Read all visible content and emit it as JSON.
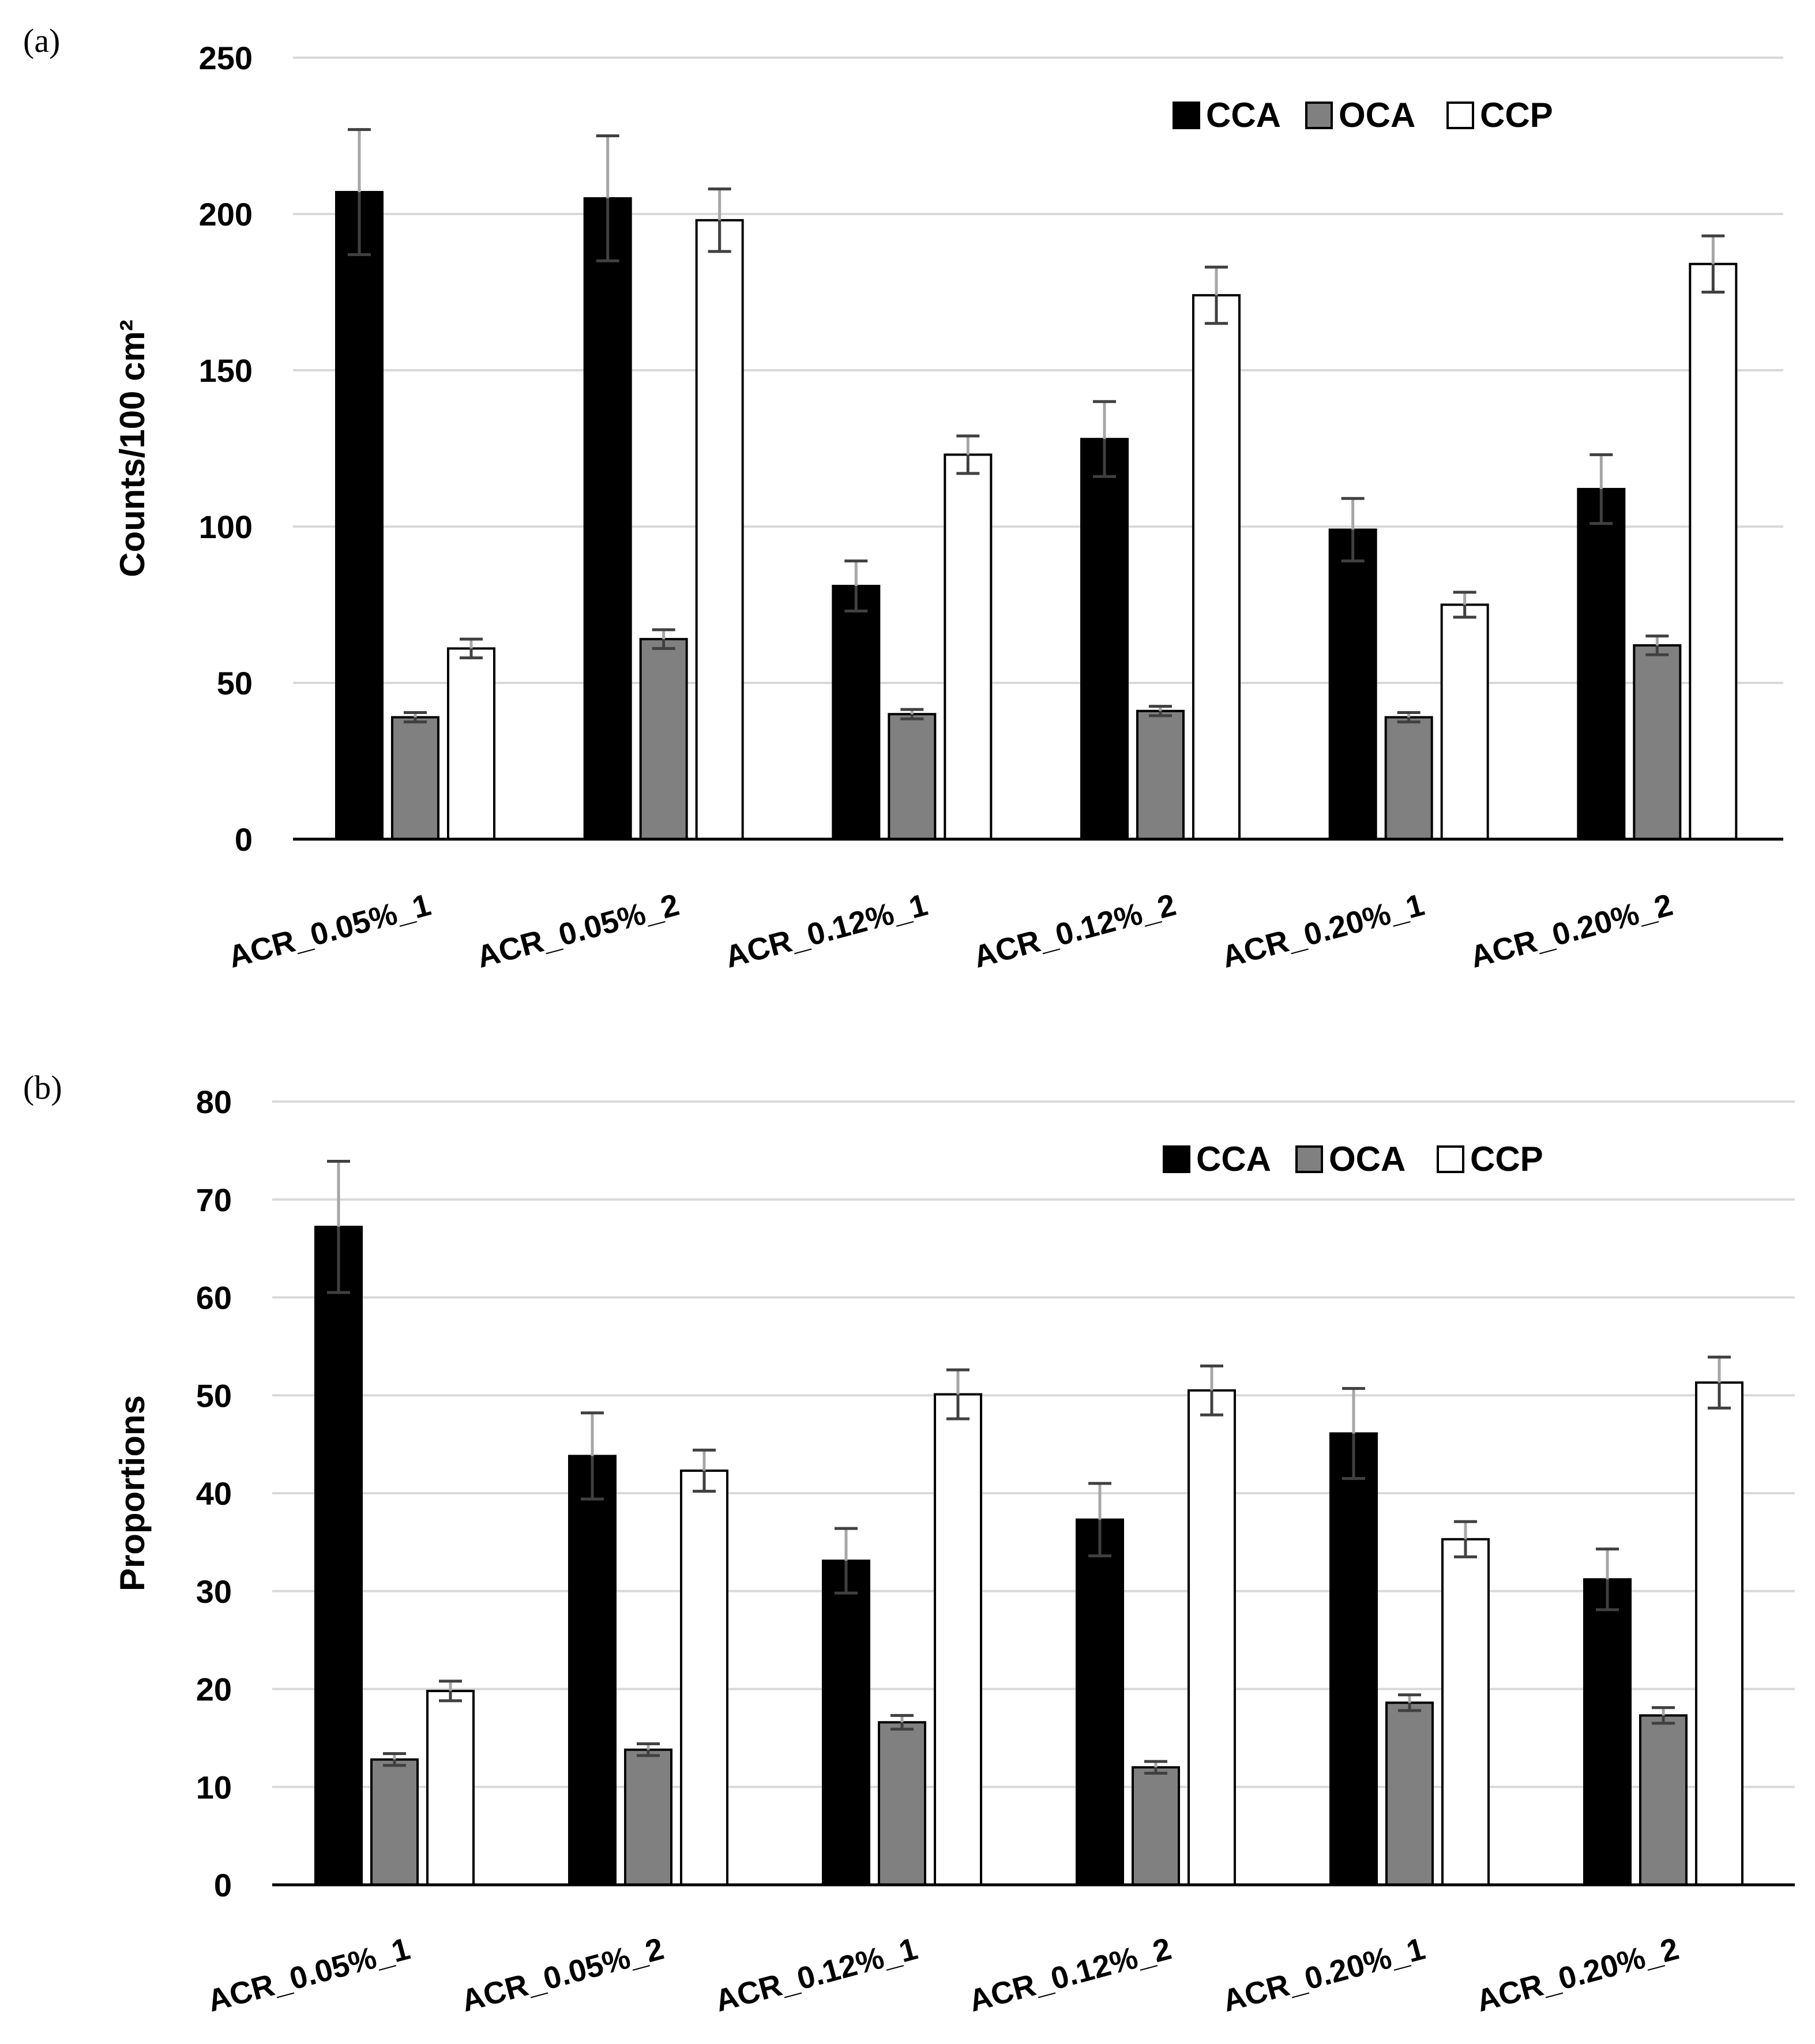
{
  "colors": {
    "CCA": "#000000",
    "OCA": "#808080",
    "CCP": "#ffffff",
    "grid": "#d9d9d9",
    "axis": "#000000",
    "err_light": "#a6a6a6",
    "err_dark": "#404040"
  },
  "chart_data": [
    {
      "panel_label": "(a)",
      "type": "bar",
      "ylabel": "Counts/100 cm²",
      "ylim": [
        0,
        250
      ],
      "yticks": [
        "0",
        "50",
        "100",
        "150",
        "200",
        "250"
      ],
      "legend": [
        "CCA",
        "OCA",
        "CCP"
      ],
      "legend_position": "top-right",
      "categories": [
        "ACR_0.05%_1",
        "ACR_0.05%_2",
        "ACR_0.12%_1",
        "ACR_0.12%_2",
        "ACR_0.20%_1",
        "ACR_0.20%_2"
      ],
      "series": [
        {
          "name": "CCA",
          "values": [
            207,
            205,
            81,
            128,
            99,
            112
          ],
          "errors": [
            20,
            20,
            8,
            12,
            10,
            11
          ]
        },
        {
          "name": "OCA",
          "values": [
            39,
            64,
            40,
            41,
            39,
            62
          ],
          "errors": [
            1.5,
            3,
            1.5,
            1.5,
            1.5,
            3
          ]
        },
        {
          "name": "CCP",
          "values": [
            61,
            198,
            123,
            174,
            75,
            184
          ],
          "errors": [
            3,
            10,
            6,
            9,
            4,
            9
          ]
        }
      ]
    },
    {
      "panel_label": "(b)",
      "type": "bar",
      "ylabel": "Proportions",
      "ylim": [
        0,
        80
      ],
      "yticks": [
        "0",
        "10",
        "20",
        "30",
        "40",
        "50",
        "60",
        "70",
        "80"
      ],
      "legend": [
        "CCA",
        "OCA",
        "CCP"
      ],
      "legend_position": "top-right",
      "categories": [
        "ACR_0.05%_1",
        "ACR_0.05%_2",
        "ACR_0.12%_1",
        "ACR_0.12%_2",
        "ACR_0.20%_1",
        "ACR_0.20%_2"
      ],
      "series": [
        {
          "name": "CCA",
          "values": [
            67.2,
            43.8,
            33.1,
            37.3,
            46.1,
            31.2
          ],
          "errors": [
            6.7,
            4.4,
            3.3,
            3.7,
            4.6,
            3.1
          ]
        },
        {
          "name": "OCA",
          "values": [
            12.8,
            13.8,
            16.6,
            12.0,
            18.6,
            17.3
          ],
          "errors": [
            0.6,
            0.6,
            0.7,
            0.6,
            0.8,
            0.8
          ]
        },
        {
          "name": "CCP",
          "values": [
            19.8,
            42.3,
            50.1,
            50.5,
            35.3,
            51.3
          ],
          "errors": [
            1.0,
            2.1,
            2.5,
            2.5,
            1.8,
            2.6
          ]
        }
      ]
    }
  ]
}
